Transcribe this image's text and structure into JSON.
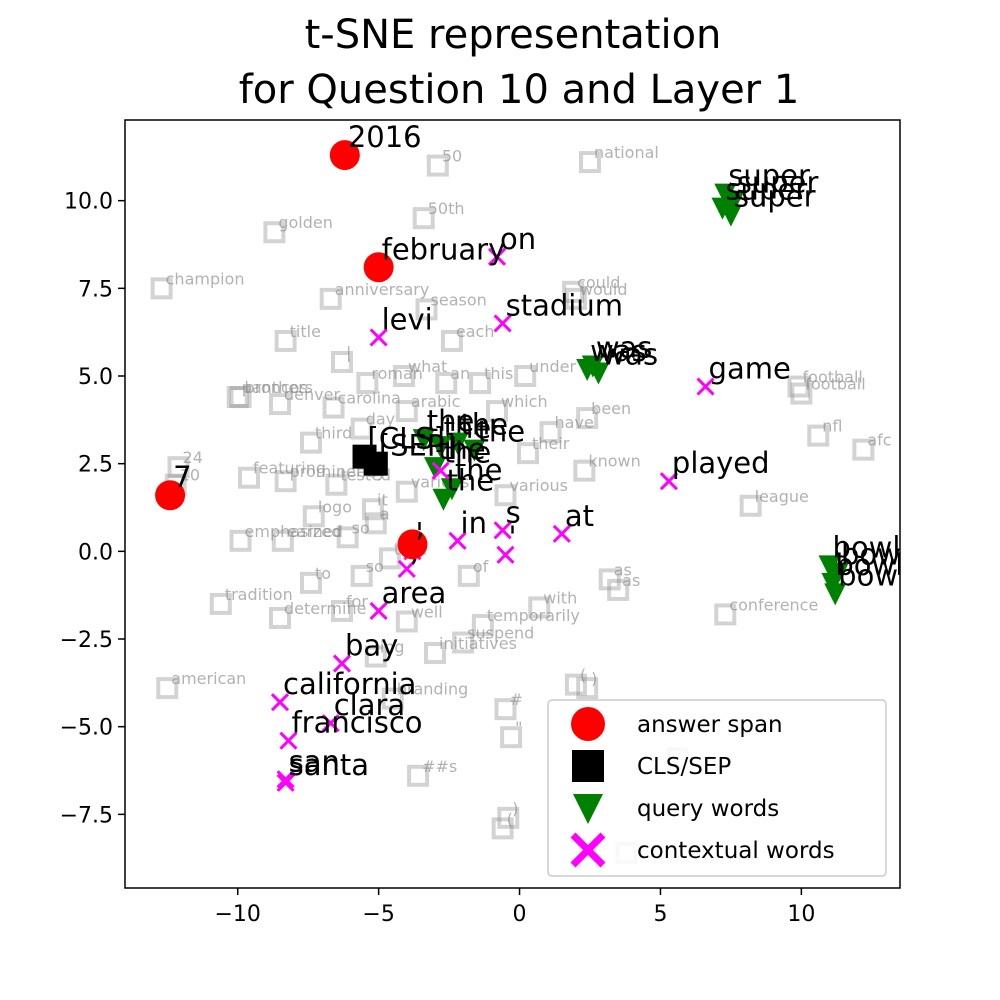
{
  "chart_data": {
    "type": "scatter",
    "title": [
      "t-SNE representation",
      "for Question 10 and Layer 1"
    ],
    "xlabel": "",
    "ylabel": "",
    "xlim": [
      -14,
      13.5
    ],
    "ylim": [
      -9.6,
      12.3
    ],
    "xticks": [
      -10,
      -5,
      0,
      5,
      10
    ],
    "xtick_labels": [
      "−10",
      "−5",
      "0",
      "5",
      "10"
    ],
    "yticks": [
      -7.5,
      -5.0,
      -2.5,
      0.0,
      2.5,
      5.0,
      7.5,
      10.0
    ],
    "ytick_labels": [
      "−7.5",
      "−5.0",
      "−2.5",
      "0.0",
      "2.5",
      "5.0",
      "7.5",
      "10.0"
    ],
    "grid": false,
    "legend_position": "lower-right",
    "legend": [
      {
        "label": "answer span",
        "marker": "circle",
        "color": "#ff0000"
      },
      {
        "label": "CLS/SEP",
        "marker": "square",
        "color": "#000000"
      },
      {
        "label": "query words",
        "marker": "triangle-down",
        "color": "#008000"
      },
      {
        "label": "contextual words",
        "marker": "x",
        "color": "#ff00ff"
      }
    ],
    "answer_span": [
      {
        "x": -6.2,
        "y": 11.3,
        "label": "2016"
      },
      {
        "x": -5.0,
        "y": 8.1,
        "label": "february"
      },
      {
        "x": -12.4,
        "y": 1.6,
        "label": "7"
      },
      {
        "x": -3.8,
        "y": 0.2,
        "label": ","
      }
    ],
    "cls_sep": [
      {
        "x": -5.5,
        "y": 2.7,
        "label": "[CLS]"
      },
      {
        "x": -5.1,
        "y": 2.5,
        "label": "[SEP]"
      }
    ],
    "query_words": [
      {
        "x": 7.3,
        "y": 10.2,
        "label": "super"
      },
      {
        "x": 7.6,
        "y": 10.0,
        "label": "super"
      },
      {
        "x": 7.2,
        "y": 9.8,
        "label": "super"
      },
      {
        "x": 7.5,
        "y": 9.6,
        "label": "super"
      },
      {
        "x": 2.6,
        "y": 5.3,
        "label": "was"
      },
      {
        "x": 2.8,
        "y": 5.1,
        "label": "was"
      },
      {
        "x": 2.4,
        "y": 5.2,
        "label": "was"
      },
      {
        "x": -3.4,
        "y": 3.2,
        "label": "the"
      },
      {
        "x": -2.8,
        "y": 3.0,
        "label": "the"
      },
      {
        "x": -2.2,
        "y": 3.1,
        "label": "the"
      },
      {
        "x": -1.6,
        "y": 2.9,
        "label": "the"
      },
      {
        "x": -3.0,
        "y": 2.4,
        "label": "the"
      },
      {
        "x": -2.4,
        "y": 1.8,
        "label": "the"
      },
      {
        "x": -2.7,
        "y": 1.5,
        "label": "the"
      },
      {
        "x": 11.0,
        "y": -0.4,
        "label": "bowl"
      },
      {
        "x": 11.3,
        "y": -0.6,
        "label": "bowl"
      },
      {
        "x": 11.1,
        "y": -0.9,
        "label": "bowl"
      },
      {
        "x": 11.2,
        "y": -1.2,
        "label": "bowl"
      }
    ],
    "contextual_words": [
      {
        "x": -0.8,
        "y": 8.4,
        "label": "on"
      },
      {
        "x": -0.6,
        "y": 6.5,
        "label": "stadium"
      },
      {
        "x": -5.0,
        "y": 6.1,
        "label": "levi"
      },
      {
        "x": 6.6,
        "y": 4.7,
        "label": "game"
      },
      {
        "x": 5.3,
        "y": 2.0,
        "label": "played"
      },
      {
        "x": -2.2,
        "y": 0.3,
        "label": "in"
      },
      {
        "x": -0.6,
        "y": 0.6,
        "label": "s"
      },
      {
        "x": -0.5,
        "y": -0.1,
        "label": "'"
      },
      {
        "x": 1.5,
        "y": 0.5,
        "label": "at"
      },
      {
        "x": -3.8,
        "y": 0.0,
        "label": "'"
      },
      {
        "x": -4.0,
        "y": -0.5,
        "label": ","
      },
      {
        "x": -5.0,
        "y": -1.7,
        "label": "area"
      },
      {
        "x": -6.3,
        "y": -3.2,
        "label": "bay"
      },
      {
        "x": -8.5,
        "y": -4.3,
        "label": "california"
      },
      {
        "x": -6.7,
        "y": -4.9,
        "label": "clara"
      },
      {
        "x": -8.2,
        "y": -5.4,
        "label": "francisco"
      },
      {
        "x": -8.3,
        "y": -6.5,
        "label": "san"
      },
      {
        "x": -8.3,
        "y": -6.6,
        "label": "santa"
      },
      {
        "x": -2.8,
        "y": 2.3,
        "label": "the"
      }
    ],
    "background_words": [
      {
        "x": -2.9,
        "y": 11.0,
        "label": "50"
      },
      {
        "x": 2.5,
        "y": 11.1,
        "label": "national"
      },
      {
        "x": -8.7,
        "y": 9.1,
        "label": "golden"
      },
      {
        "x": -3.4,
        "y": 9.5,
        "label": "50th"
      },
      {
        "x": -12.7,
        "y": 7.5,
        "label": "champion"
      },
      {
        "x": 1.9,
        "y": 7.4,
        "label": "could"
      },
      {
        "x": 2.0,
        "y": 7.2,
        "label": "would"
      },
      {
        "x": -6.7,
        "y": 7.2,
        "label": "anniversary"
      },
      {
        "x": -3.3,
        "y": 6.9,
        "label": "season"
      },
      {
        "x": -8.3,
        "y": 6.0,
        "label": "title"
      },
      {
        "x": -2.4,
        "y": 6.0,
        "label": "each"
      },
      {
        "x": -6.3,
        "y": 5.4,
        "label": "|"
      },
      {
        "x": -4.1,
        "y": 5.0,
        "label": "what"
      },
      {
        "x": 0.2,
        "y": 5.0,
        "label": "under"
      },
      {
        "x": -5.4,
        "y": 4.8,
        "label": "roman"
      },
      {
        "x": -2.6,
        "y": 4.8,
        "label": "an"
      },
      {
        "x": -1.4,
        "y": 4.8,
        "label": "this"
      },
      {
        "x": -9.9,
        "y": 4.4,
        "label": "broncos"
      },
      {
        "x": -10.0,
        "y": 4.4,
        "label": "panthers"
      },
      {
        "x": -8.5,
        "y": 4.2,
        "label": "denver"
      },
      {
        "x": -6.6,
        "y": 4.1,
        "label": "carolina"
      },
      {
        "x": 9.9,
        "y": 4.7,
        "label": "football"
      },
      {
        "x": 10.0,
        "y": 4.5,
        "label": "football"
      },
      {
        "x": -4.0,
        "y": 4.0,
        "label": "arabic"
      },
      {
        "x": -0.8,
        "y": 4.0,
        "label": "which"
      },
      {
        "x": 2.4,
        "y": 3.8,
        "label": "been"
      },
      {
        "x": -5.6,
        "y": 3.5,
        "label": "day"
      },
      {
        "x": 1.1,
        "y": 3.4,
        "label": "have"
      },
      {
        "x": 10.6,
        "y": 3.3,
        "label": "nfl"
      },
      {
        "x": -7.4,
        "y": 3.1,
        "label": "third"
      },
      {
        "x": 12.2,
        "y": 2.9,
        "label": "afc"
      },
      {
        "x": 0.3,
        "y": 2.8,
        "label": "their"
      },
      {
        "x": -12.1,
        "y": 2.4,
        "label": "24"
      },
      {
        "x": -12.2,
        "y": 1.9,
        "label": "10"
      },
      {
        "x": -9.6,
        "y": 2.1,
        "label": "featuring"
      },
      {
        "x": -8.3,
        "y": 2.0,
        "label": "prominently"
      },
      {
        "x": -6.5,
        "y": 1.9,
        "label": "tested"
      },
      {
        "x": 2.3,
        "y": 2.3,
        "label": "known"
      },
      {
        "x": -4.0,
        "y": 1.7,
        "label": "various"
      },
      {
        "x": -0.5,
        "y": 1.6,
        "label": "various"
      },
      {
        "x": 8.2,
        "y": 1.3,
        "label": "league"
      },
      {
        "x": -5.2,
        "y": 1.2,
        "label": "it"
      },
      {
        "x": -7.3,
        "y": 1.0,
        "label": "logo"
      },
      {
        "x": -5.1,
        "y": 0.8,
        "label": "a"
      },
      {
        "x": -9.9,
        "y": 0.3,
        "label": "emphasized"
      },
      {
        "x": -8.4,
        "y": 0.3,
        "label": "earned"
      },
      {
        "x": -6.1,
        "y": 0.4,
        "label": "so"
      },
      {
        "x": -4.6,
        "y": -0.2,
        "label": "that"
      },
      {
        "x": -7.4,
        "y": -0.9,
        "label": "to"
      },
      {
        "x": -5.6,
        "y": -0.7,
        "label": "so"
      },
      {
        "x": -1.8,
        "y": -0.7,
        "label": "of"
      },
      {
        "x": 3.2,
        "y": -0.8,
        "label": "as"
      },
      {
        "x": 3.5,
        "y": -1.1,
        "label": "as"
      },
      {
        "x": -10.6,
        "y": -1.5,
        "label": "tradition"
      },
      {
        "x": -8.5,
        "y": -1.9,
        "label": "determine"
      },
      {
        "x": -6.3,
        "y": -1.7,
        "label": "for"
      },
      {
        "x": -4.0,
        "y": -2.0,
        "label": "well"
      },
      {
        "x": 0.7,
        "y": -1.6,
        "label": "with"
      },
      {
        "x": 7.3,
        "y": -1.8,
        "label": "conference"
      },
      {
        "x": -1.3,
        "y": -2.1,
        "label": "temporarily"
      },
      {
        "x": -2.0,
        "y": -2.6,
        "label": "suspend"
      },
      {
        "x": -3.0,
        "y": -2.9,
        "label": "initiatives"
      },
      {
        "x": -5.1,
        "y": -3.0,
        "label": "ing"
      },
      {
        "x": -12.5,
        "y": -3.9,
        "label": "american"
      },
      {
        "x": 2.0,
        "y": -3.8,
        "label": "("
      },
      {
        "x": 2.4,
        "y": -3.9,
        "label": ")"
      },
      {
        "x": -4.5,
        "y": -4.2,
        "label": "branding"
      },
      {
        "x": -0.5,
        "y": -4.5,
        "label": "#"
      },
      {
        "x": -0.3,
        "y": -5.3,
        "label": "\""
      },
      {
        "x": -3.6,
        "y": -6.4,
        "label": "##s"
      },
      {
        "x": 5.6,
        "y": -5.9,
        "label": ""
      },
      {
        "x": -0.6,
        "y": -7.9,
        "label": "("
      },
      {
        "x": -0.4,
        "y": -7.6,
        "label": ")"
      },
      {
        "x": 3.8,
        "y": -8.6,
        "label": ""
      }
    ]
  }
}
